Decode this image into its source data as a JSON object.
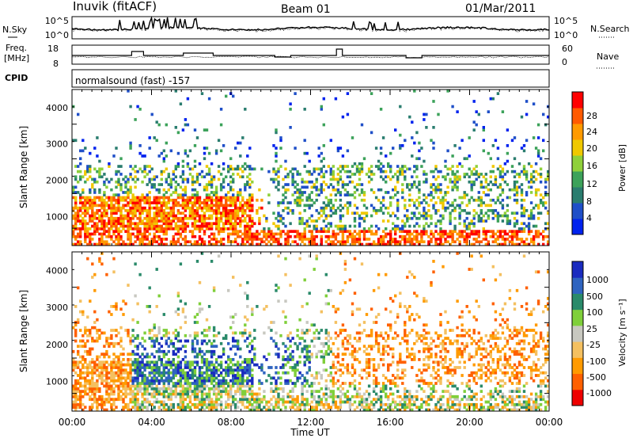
{
  "header": {
    "station": "Inuvik (fitACF)",
    "beam": "Beam 01",
    "date": "01/Mar/2011"
  },
  "top_panels": {
    "sky": {
      "left_label": "N.Sky",
      "right_label": "N.Search",
      "left_ticks": [
        "10^5",
        "10^0"
      ],
      "right_ticks": [
        "10^5",
        "10^0"
      ]
    },
    "freq": {
      "left_label_line1": "Freq.",
      "left_label_line2": "[MHz]",
      "right_label": "Nave",
      "left_ticks": [
        "18",
        "8"
      ],
      "right_ticks": [
        "60",
        "0"
      ]
    },
    "cpid": {
      "label": "CPID",
      "text": "normalsound (fast) -157"
    }
  },
  "chart_data": [
    {
      "type": "heatmap",
      "name": "power",
      "ylabel": "Slant Range [km]",
      "y_ticks": [
        "1000",
        "2000",
        "3000",
        "4000"
      ],
      "ylim": [
        200,
        4500
      ],
      "xlim_hours": [
        0,
        24
      ],
      "colorbar_label": "Power [dB]",
      "colorbar_ticks": [
        "28",
        "24",
        "20",
        "16",
        "12",
        "8",
        "4"
      ],
      "colors": [
        "#0022ee",
        "#1f4fc8",
        "#2a7d6f",
        "#3ca25a",
        "#8fd03a",
        "#f0c800",
        "#ff9a00",
        "#ff5a00",
        "#ff0000"
      ]
    },
    {
      "type": "heatmap",
      "name": "velocity",
      "ylabel": "Slant Range [km]",
      "y_ticks": [
        "1000",
        "2000",
        "3000",
        "4000"
      ],
      "ylim": [
        200,
        4500
      ],
      "xlim_hours": [
        0,
        24
      ],
      "colorbar_label": "Velocity [m s⁻¹]",
      "colorbar_ticks": [
        "1000",
        "500",
        "100",
        "25",
        "-25",
        "-100",
        "-500",
        "-1000"
      ],
      "colors": [
        "#1a2bbf",
        "#2f64c0",
        "#2a8a6a",
        "#7fcf3a",
        "#c8c8c0",
        "#f4c060",
        "#ff9a00",
        "#ff6000",
        "#ee0000"
      ],
      "xlabel": "Time UT",
      "x_ticks": [
        "00:00",
        "04:00",
        "08:00",
        "12:00",
        "16:00",
        "20:00",
        "00:00"
      ]
    }
  ]
}
